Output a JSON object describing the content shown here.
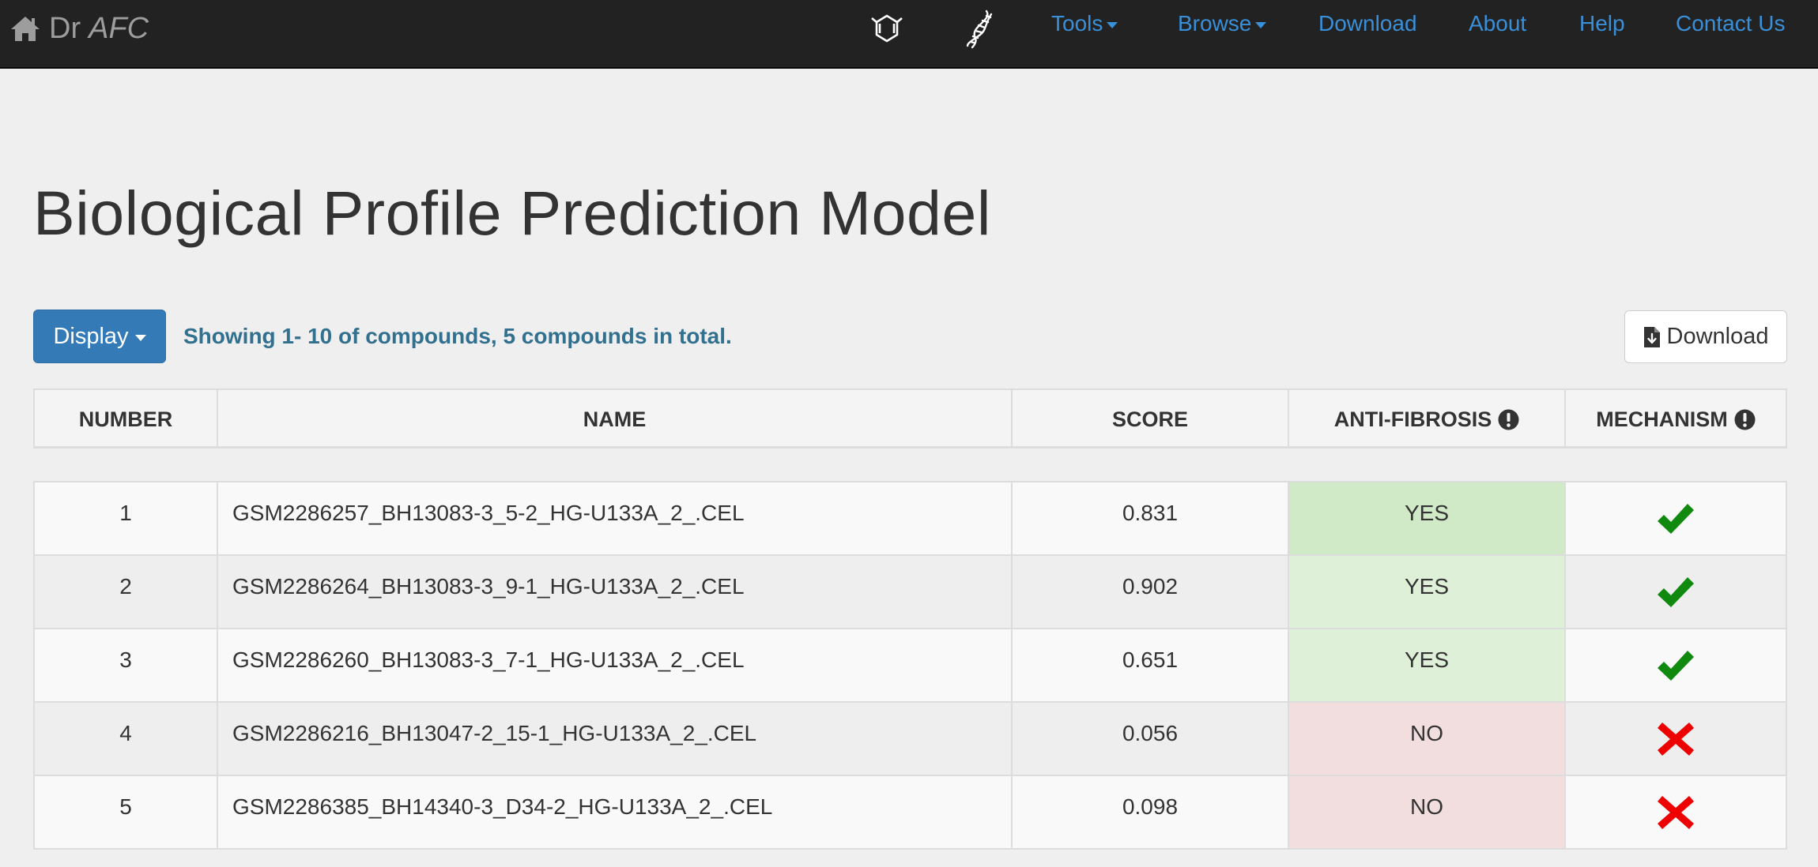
{
  "navbar": {
    "brand_prefix": "Dr",
    "brand_italic": "AFC",
    "links": [
      {
        "label": "Tools",
        "dropdown": true
      },
      {
        "label": "Browse",
        "dropdown": true
      },
      {
        "label": "Download",
        "dropdown": false
      },
      {
        "label": "About",
        "dropdown": false
      },
      {
        "label": "Help",
        "dropdown": false
      },
      {
        "label": "Contact Us",
        "dropdown": false
      }
    ],
    "icons": [
      "molecule-icon",
      "dna-icon"
    ],
    "link_color": "#3a8fd9",
    "background": "#222222"
  },
  "page": {
    "title": "Biological Profile Prediction Model"
  },
  "toolbar": {
    "display_label": "Display",
    "showing_text": "Showing 1- 10 of compounds, 5 compounds in total.",
    "download_label": "Download"
  },
  "table": {
    "headers": [
      "NUMBER",
      "NAME",
      "SCORE",
      "ANTI-FIBROSIS",
      "MECHANISM"
    ],
    "rows": [
      {
        "number": "1",
        "name": "GSM2286257_BH13083-3_5-2_HG-U133A_2_.CEL",
        "score": "0.831",
        "anti_fibrosis": "YES",
        "mechanism": "check"
      },
      {
        "number": "2",
        "name": "GSM2286264_BH13083-3_9-1_HG-U133A_2_.CEL",
        "score": "0.902",
        "anti_fibrosis": "YES",
        "mechanism": "check"
      },
      {
        "number": "3",
        "name": "GSM2286260_BH13083-3_7-1_HG-U133A_2_.CEL",
        "score": "0.651",
        "anti_fibrosis": "YES",
        "mechanism": "check"
      },
      {
        "number": "4",
        "name": "GSM2286216_BH13047-2_15-1_HG-U133A_2_.CEL",
        "score": "0.056",
        "anti_fibrosis": "NO",
        "mechanism": "cross"
      },
      {
        "number": "5",
        "name": "GSM2286385_BH14340-3_D34-2_HG-U133A_2_.CEL",
        "score": "0.098",
        "anti_fibrosis": "NO",
        "mechanism": "cross"
      }
    ],
    "colors": {
      "yes_cell": "#dff0d8",
      "no_cell": "#f2dede",
      "check": "#0f8a0f",
      "cross": "#ee0000"
    }
  }
}
